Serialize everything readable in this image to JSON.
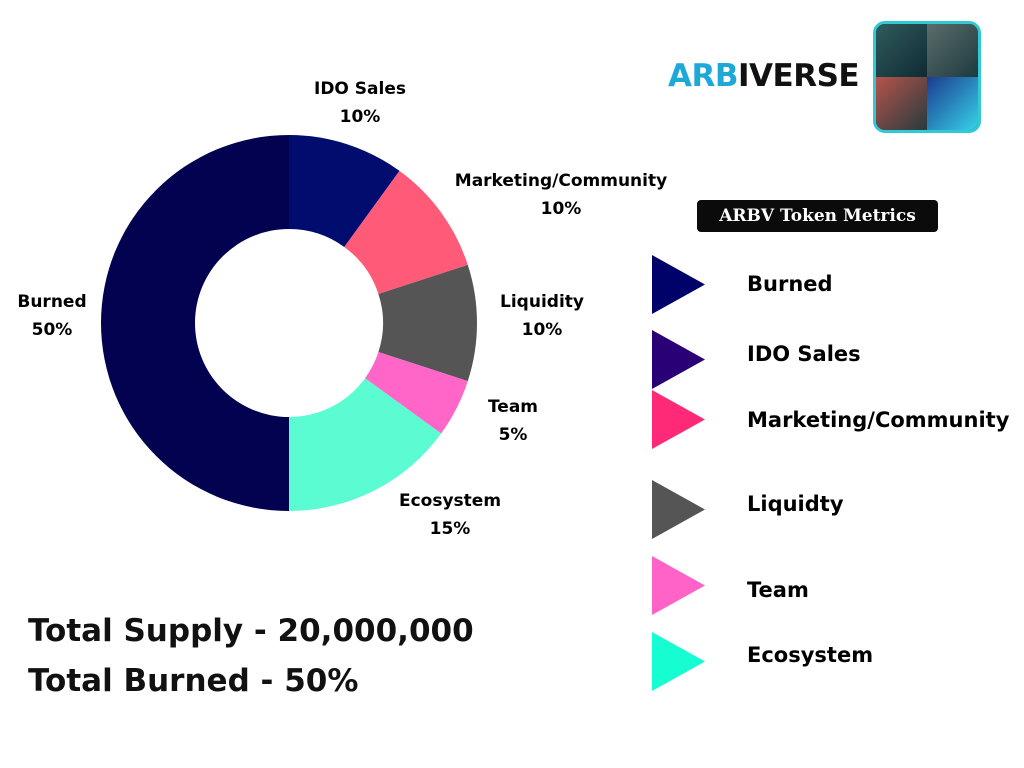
{
  "brand": {
    "name_accent": "ARB",
    "name_rest": "IVERSE",
    "accent_color": "#1ea8d8",
    "logo_icon": "isometric-city-logo-icon"
  },
  "metrics_title": "ARBV Token Metrics",
  "chart_data": {
    "type": "pie",
    "donut": true,
    "slices": [
      {
        "name": "IDO Sales",
        "value": 10,
        "label": "10%",
        "color": "#000d6e"
      },
      {
        "name": "Marketing/Community",
        "value": 10,
        "label": "10%",
        "color": "#ff5a78"
      },
      {
        "name": "Liquidity",
        "value": 10,
        "label": "10%",
        "color": "#555555"
      },
      {
        "name": "Team",
        "value": 5,
        "label": "5%",
        "color": "#ff66c8"
      },
      {
        "name": "Ecosystem",
        "value": 15,
        "label": "15%",
        "color": "#5cfcd2"
      },
      {
        "name": "Burned",
        "value": 50,
        "label": "50%",
        "color": "#020250"
      }
    ]
  },
  "legend": [
    {
      "label": "Burned",
      "color": "#01016a"
    },
    {
      "label": "IDO Sales",
      "color": "#2a0077"
    },
    {
      "label": "Marketing/Community",
      "color": "#ff2a77"
    },
    {
      "label": "Liquidty",
      "color": "#555555"
    },
    {
      "label": "Team",
      "color": "#ff63c7"
    },
    {
      "label": "Ecosystem",
      "color": "#16fdd2"
    }
  ],
  "totals": {
    "supply": "Total Supply - 20,000,000",
    "burned": "Total Burned - 50%"
  }
}
